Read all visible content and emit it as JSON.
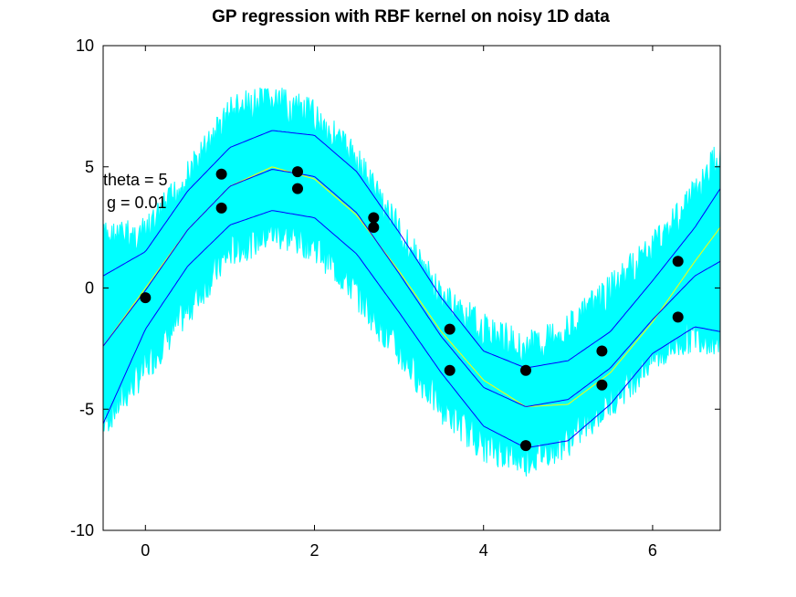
{
  "chart_data": {
    "type": "line",
    "title": "GP regression with RBF kernel on noisy 1D data",
    "xlabel": "",
    "ylabel": "",
    "xlim": [
      -0.5,
      6.8
    ],
    "ylim": [
      -10,
      10
    ],
    "x_ticks": [
      0,
      2,
      4,
      6
    ],
    "y_ticks": [
      -10,
      -5,
      0,
      5,
      10
    ],
    "grid": false,
    "annotations": [
      "theta = 5",
      "g = 0.01"
    ],
    "colors": {
      "samples": "#00ffff",
      "mean": "#0000ff",
      "bounds": "#0000ff",
      "truth": "#ffff00",
      "points": "#000000"
    },
    "series": [
      {
        "role": "predictive-samples",
        "x": [
          -0.5,
          0.0,
          0.5,
          1.0,
          1.5,
          2.0,
          2.5,
          3.0,
          3.5,
          4.0,
          4.5,
          5.0,
          5.5,
          6.0,
          6.5,
          6.8
        ],
        "lower": [
          -6.3,
          -4.0,
          -1.6,
          0.8,
          1.6,
          1.1,
          -0.9,
          -3.4,
          -5.6,
          -7.2,
          -7.8,
          -7.0,
          -5.4,
          -3.6,
          -2.6,
          -2.9
        ],
        "upper": [
          2.8,
          2.9,
          5.3,
          8.0,
          8.4,
          7.8,
          6.0,
          3.1,
          0.3,
          -1.0,
          -1.8,
          -1.0,
          0.6,
          2.4,
          4.6,
          6.3
        ]
      },
      {
        "role": "predictive-mean",
        "x": [
          -0.5,
          0.0,
          0.5,
          1.0,
          1.5,
          2.0,
          2.5,
          3.0,
          3.5,
          4.0,
          4.5,
          5.0,
          5.5,
          6.0,
          6.5,
          6.8
        ],
        "y": [
          -2.4,
          -0.1,
          2.4,
          4.2,
          4.9,
          4.6,
          3.1,
          0.6,
          -2.0,
          -4.1,
          -4.9,
          -4.6,
          -3.3,
          -1.3,
          0.5,
          1.1
        ]
      },
      {
        "role": "upper-bound",
        "x": [
          -0.5,
          0.0,
          0.5,
          1.0,
          1.5,
          2.0,
          2.5,
          3.0,
          3.5,
          4.0,
          4.5,
          5.0,
          5.5,
          6.0,
          6.5,
          6.8
        ],
        "y": [
          0.5,
          1.5,
          4.0,
          5.8,
          6.5,
          6.3,
          4.8,
          2.3,
          -0.4,
          -2.6,
          -3.3,
          -3.0,
          -1.8,
          0.3,
          2.5,
          4.1
        ]
      },
      {
        "role": "lower-bound",
        "x": [
          -0.5,
          0.0,
          0.5,
          1.0,
          1.5,
          2.0,
          2.5,
          3.0,
          3.5,
          4.0,
          4.5,
          5.0,
          5.5,
          6.0,
          6.5,
          6.8
        ],
        "y": [
          -5.6,
          -1.7,
          0.9,
          2.6,
          3.2,
          2.9,
          1.4,
          -1.0,
          -3.5,
          -5.7,
          -6.6,
          -6.3,
          -4.8,
          -2.7,
          -1.6,
          -1.8
        ]
      },
      {
        "role": "true-function",
        "x": [
          -0.5,
          0.0,
          0.5,
          1.0,
          1.5,
          2.0,
          2.5,
          3.0,
          3.5,
          4.0,
          4.5,
          5.0,
          5.5,
          6.0,
          6.5,
          6.8
        ],
        "y": [
          -2.4,
          0.0,
          2.4,
          4.2,
          5.0,
          4.5,
          3.0,
          0.7,
          -1.8,
          -3.8,
          -4.9,
          -4.8,
          -3.5,
          -1.4,
          1.1,
          2.5
        ]
      },
      {
        "role": "training-points",
        "points": [
          {
            "x": 0.0,
            "y": -0.4
          },
          {
            "x": 0.9,
            "y": 4.7
          },
          {
            "x": 0.9,
            "y": 3.3
          },
          {
            "x": 1.8,
            "y": 4.8
          },
          {
            "x": 1.8,
            "y": 4.1
          },
          {
            "x": 2.7,
            "y": 2.9
          },
          {
            "x": 2.7,
            "y": 2.5
          },
          {
            "x": 3.6,
            "y": -1.7
          },
          {
            "x": 3.6,
            "y": -3.4
          },
          {
            "x": 4.5,
            "y": -3.4
          },
          {
            "x": 4.5,
            "y": -6.5
          },
          {
            "x": 5.4,
            "y": -2.6
          },
          {
            "x": 5.4,
            "y": -4.0
          },
          {
            "x": 6.3,
            "y": 1.1
          },
          {
            "x": 6.3,
            "y": -1.2
          }
        ]
      }
    ]
  }
}
